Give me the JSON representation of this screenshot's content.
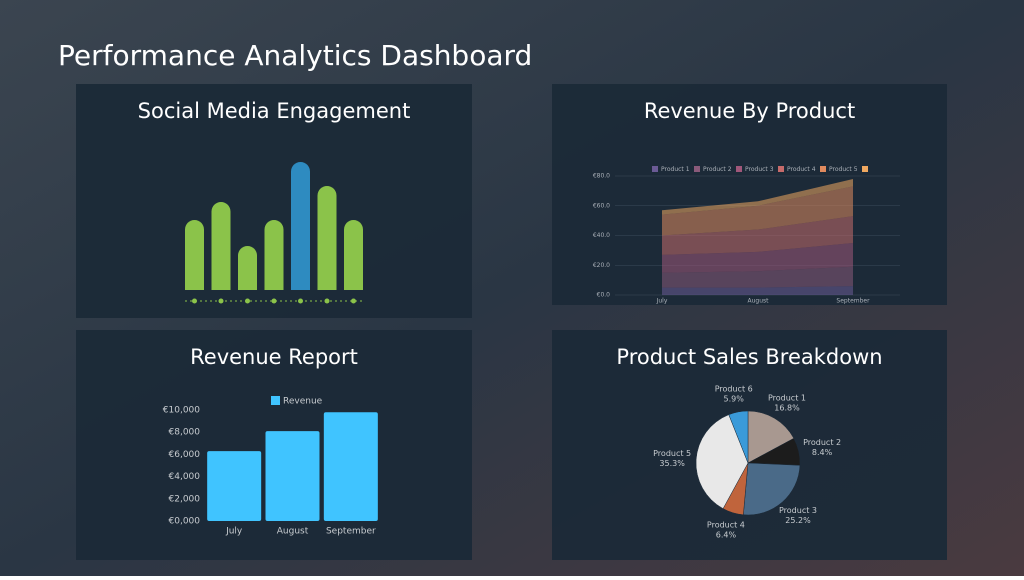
{
  "title": "Performance Analytics Dashboard",
  "chart_data": [
    {
      "type": "bar",
      "style": "rounded",
      "title": "Social Media Engagement",
      "values": [
        70,
        88,
        44,
        70,
        128,
        104,
        70
      ],
      "colors": [
        "#8bc34a",
        "#8bc34a",
        "#8bc34a",
        "#8bc34a",
        "#2e8bc0",
        "#8bc34a",
        "#8bc34a"
      ]
    },
    {
      "type": "area",
      "stacked": true,
      "title": "Revenue By Product",
      "categories": [
        "July",
        "August",
        "September"
      ],
      "ylim": [
        0,
        80
      ],
      "yticks": [
        {
          "value": 0,
          "label": "€0.0"
        },
        {
          "value": 20,
          "label": "€20.0"
        },
        {
          "value": 40,
          "label": "€40.0"
        },
        {
          "value": 60,
          "label": "€60.0"
        },
        {
          "value": 80,
          "label": "€80.0"
        }
      ],
      "grid": true,
      "series": [
        {
          "name": "Product 1",
          "color": "#6b5b95",
          "values": [
            5,
            5,
            6
          ]
        },
        {
          "name": "Product 2",
          "color": "#8a5a7a",
          "values": [
            10,
            11,
            13
          ]
        },
        {
          "name": "Product 3",
          "color": "#a0577a",
          "values": [
            12,
            13,
            16
          ]
        },
        {
          "name": "Product 4",
          "color": "#c76b6b",
          "values": [
            13,
            15,
            18
          ]
        },
        {
          "name": "Product 5",
          "color": "#e08a5e",
          "values": [
            14,
            16,
            20
          ]
        },
        {
          "name": null,
          "color": "#f0a860",
          "values": [
            3,
            3,
            5
          ]
        }
      ]
    },
    {
      "type": "bar",
      "style": "axis",
      "title": "Revenue Report",
      "categories": [
        "July",
        "August",
        "September"
      ],
      "series": [
        {
          "name": "Revenue",
          "color": "#40c4ff",
          "values": [
            6300,
            8100,
            9800
          ]
        }
      ],
      "ylim": [
        0,
        10000
      ],
      "yticks": [
        {
          "value": 0,
          "label": "€0,000"
        },
        {
          "value": 2000,
          "label": "€2,000"
        },
        {
          "value": 4000,
          "label": "€4,000"
        },
        {
          "value": 6000,
          "label": "€6,000"
        },
        {
          "value": 8000,
          "label": "€8,000"
        },
        {
          "value": 10000,
          "label": "€10,000"
        }
      ]
    },
    {
      "type": "pie",
      "title": "Product Sales Breakdown",
      "categories": [
        "Product 1",
        "Product 2",
        "Product 3",
        "Product 4",
        "Product 5",
        "Product 6"
      ],
      "values": [
        16.8,
        8.4,
        25.2,
        6.4,
        35.3,
        5.9
      ],
      "value_labels": [
        "16.8%",
        "8.4%",
        "25.2%",
        "6.4%",
        "35.3%",
        "5.9%"
      ],
      "colors": [
        "#a89890",
        "#1c1c1c",
        "#4a6a88",
        "#c0643c",
        "#e8e8e8",
        "#3a9ad9"
      ]
    }
  ]
}
